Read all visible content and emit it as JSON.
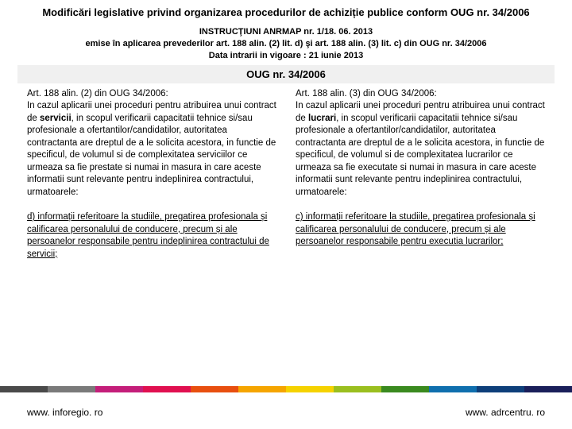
{
  "title": "Modificări legislative privind organizarea procedurilor de achiziție publice conform OUG nr. 34/2006",
  "header": {
    "line1": "INSTRUCŢIUNI ANRMAP nr. 1/18. 06. 2013",
    "line2": "emise în aplicarea prevederilor art. 188 alin. (2) lit. d) şi art. 188 alin. (3) lit. c) din OUG nr. 34/2006",
    "line3": "Data intrarii in vigoare : 21 iunie 2013"
  },
  "law_title": "OUG nr. 34/2006",
  "left": {
    "art": "Art. 188 alin. (2) din OUG 34/2006:",
    "para": "In cazul aplicarii unei proceduri pentru atribuirea unui contract de ",
    "kw": "servicii",
    "para2": ", in scopul verificarii capacitatii tehnice si/sau profesionale a ofertantilor/candidatilor, autoritatea contractanta are dreptul de a le solicita acestora, in functie de specificul, de volumul si de complexitatea serviciilor ce urmeaza sa fie prestate si numai in masura in care aceste informatii sunt relevante pentru indeplinirea contractului, urmatoarele:",
    "sub": "d) informații referitoare la studiile, pregatirea profesionala și calificarea personalului de conducere, precum și ale persoanelor responsabile pentru indeplinirea contractului de servicii;"
  },
  "right": {
    "art": "Art. 188 alin. (3) din OUG 34/2006:",
    "para": "In cazul aplicarii unei proceduri pentru atribuirea unui contract de ",
    "kw": "lucrari",
    "para2": ", in scopul verificarii capacitatii tehnice si/sau profesionale a ofertantilor/candidatilor, autoritatea contractanta are dreptul de a le solicita acestora, in functie de specificul, de volumul si de complexitatea lucrarilor ce urmeaza sa fie executate si numai in masura in care aceste informatii sunt relevante pentru indeplinirea contractului, urmatoarele:",
    "sub": "c) informații referitoare la studiile, pregatirea profesionala și calificarea personalului de conducere, precum și ale persoanelor responsabile pentru executia lucrarilor;"
  },
  "footer": {
    "left": "www. inforegio. ro",
    "right": "www. adrcentru. ro"
  },
  "strip_colors": [
    "#4a4a4a",
    "#7a7a7a",
    "#c41e7a",
    "#e01050",
    "#e84f0f",
    "#f5a500",
    "#f5d200",
    "#9abf1f",
    "#3a8a1f",
    "#0f6fae",
    "#0e3f7a",
    "#1a1f5a"
  ]
}
